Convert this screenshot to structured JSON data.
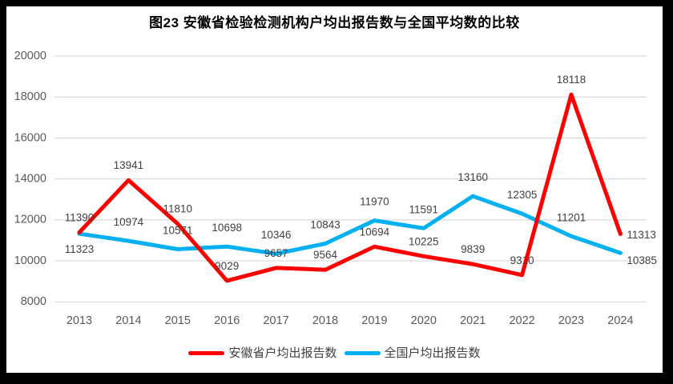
{
  "window": {
    "frame_color": "#000000",
    "background": "#ffffff"
  },
  "chart_data": {
    "type": "line",
    "title": "图23 安徽省检验检测机构户均出报告数与全国平均数的比较",
    "categories": [
      "2013",
      "2014",
      "2015",
      "2016",
      "2017",
      "2018",
      "2019",
      "2020",
      "2021",
      "2022",
      "2023",
      "2024"
    ],
    "series": [
      {
        "name": "安徽省户均出报告数",
        "color": "#fe0000",
        "values": [
          11390,
          13941,
          11810,
          9029,
          9657,
          9564,
          10694,
          10225,
          9839,
          9310,
          18118,
          11313
        ],
        "label_placements": [
          "above",
          "above",
          "above",
          "above",
          "above",
          "above",
          "above",
          "above",
          "above",
          "above",
          "above",
          "right"
        ]
      },
      {
        "name": "全国户均出报告数",
        "color": "#00b0f0",
        "values": [
          11323,
          10974,
          10571,
          10698,
          10346,
          10843,
          11970,
          11591,
          13160,
          12305,
          11201,
          10385
        ],
        "label_placements": [
          "below",
          "above",
          "above",
          "above",
          "above",
          "above",
          "above",
          "above",
          "above",
          "above",
          "above",
          "right-below"
        ]
      }
    ],
    "xlabel": "",
    "ylabel": "",
    "ylim": [
      8000,
      20000
    ],
    "y_ticks": [
      8000,
      10000,
      12000,
      14000,
      16000,
      18000,
      20000
    ],
    "grid": true,
    "legend_position": "bottom",
    "styles": {
      "gridline_color": "#d9d9d9",
      "tick_label_color": "#595959",
      "data_label_color": "#404040",
      "title_color": "#000000"
    }
  }
}
